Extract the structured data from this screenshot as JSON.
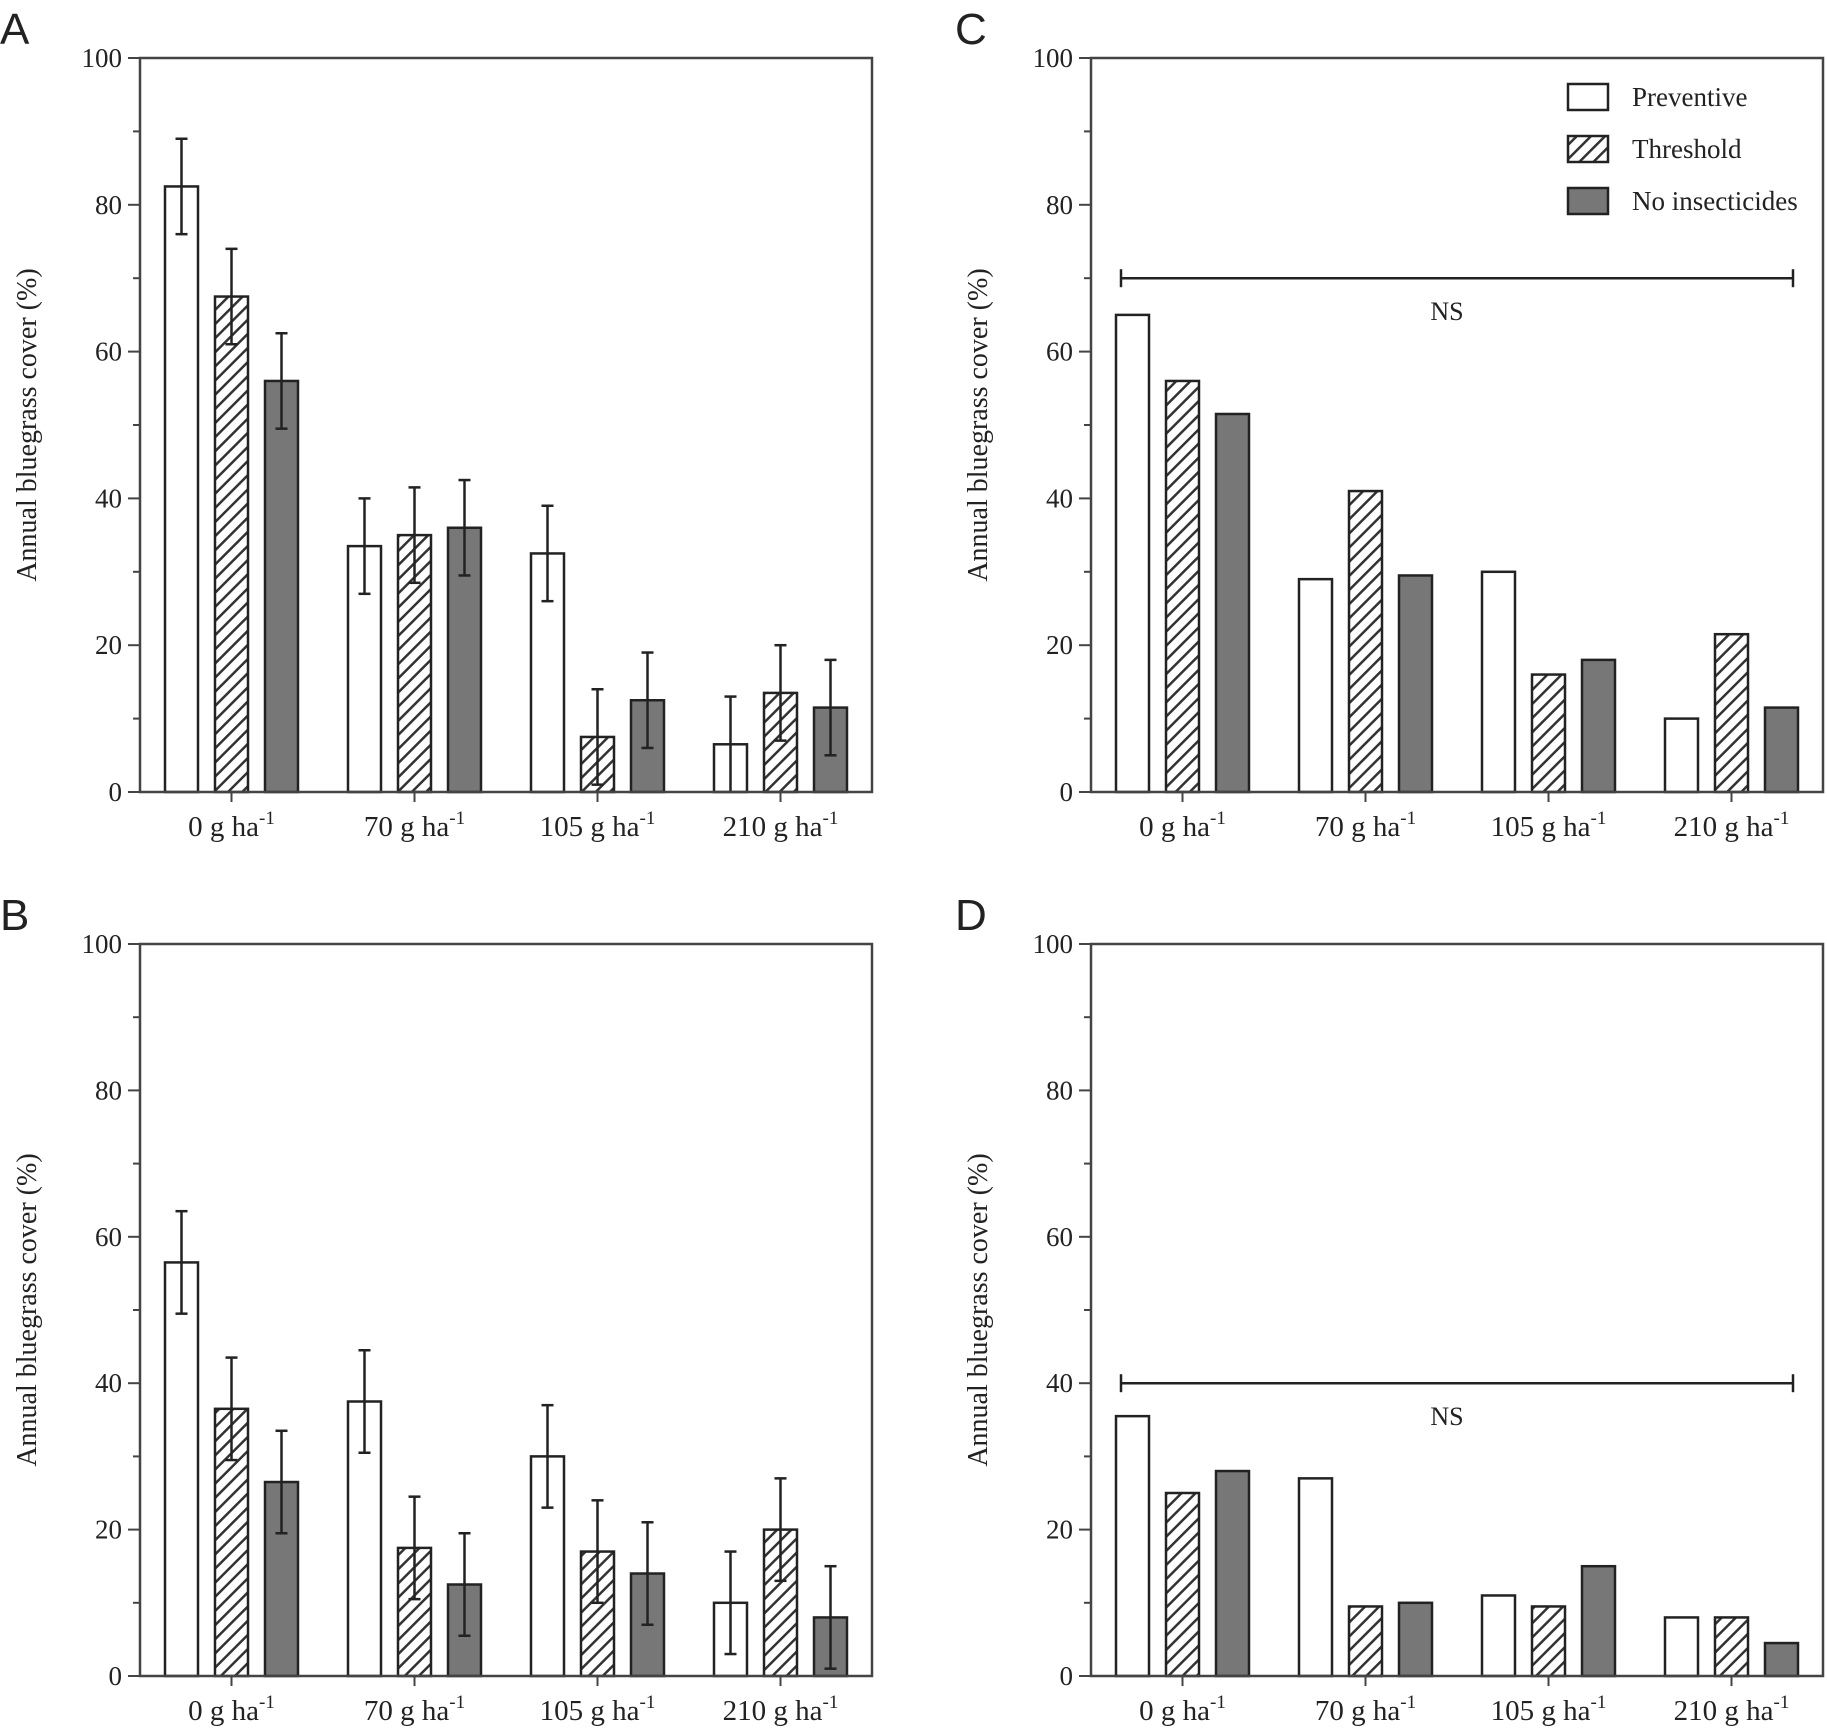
{
  "colors": {
    "axis": "#444444",
    "preventive": "#ffffff",
    "threshold_hatch": "#333333",
    "no_insecticides": "#777777",
    "bar_stroke": "#222222"
  },
  "chart_data": [
    {
      "panel": "A",
      "type": "bar",
      "ylabel": "Annual bluegrass cover (%)",
      "ylim": [
        0,
        100
      ],
      "yticks": [
        "0",
        "20",
        "40",
        "60",
        "80",
        "100"
      ],
      "categories": [
        {
          "main": "0 g ha",
          "sup": "-1"
        },
        {
          "main": "70 g ha",
          "sup": "-1"
        },
        {
          "main": "105 g ha",
          "sup": "-1"
        },
        {
          "main": "210 g ha",
          "sup": "-1"
        }
      ],
      "series": [
        {
          "key": "preventive",
          "values": [
            82.5,
            33.5,
            32.5,
            6.5
          ],
          "errors": [
            6.5,
            6.5,
            6.5,
            6.5
          ]
        },
        {
          "key": "threshold",
          "values": [
            67.5,
            35,
            7.5,
            13.5
          ],
          "errors": [
            6.5,
            6.5,
            6.5,
            6.5
          ]
        },
        {
          "key": "no_insecticides",
          "values": [
            56,
            36,
            12.5,
            11.5
          ],
          "errors": [
            6.5,
            6.5,
            6.5,
            6.5
          ]
        }
      ],
      "legend": false,
      "ns_line": null
    },
    {
      "panel": "B",
      "type": "bar",
      "ylabel": "Annual bluegrass cover (%)",
      "ylim": [
        0,
        100
      ],
      "yticks": [
        "0",
        "20",
        "40",
        "60",
        "80",
        "100"
      ],
      "categories": [
        {
          "main": "0 g ha",
          "sup": "-1"
        },
        {
          "main": "70 g ha",
          "sup": "-1"
        },
        {
          "main": "105 g ha",
          "sup": "-1"
        },
        {
          "main": "210 g ha",
          "sup": "-1"
        }
      ],
      "series": [
        {
          "key": "preventive",
          "values": [
            56.5,
            37.5,
            30,
            10
          ],
          "errors": [
            7,
            7,
            7,
            7
          ]
        },
        {
          "key": "threshold",
          "values": [
            36.5,
            17.5,
            17,
            20
          ],
          "errors": [
            7,
            7,
            7,
            7
          ]
        },
        {
          "key": "no_insecticides",
          "values": [
            26.5,
            12.5,
            14,
            8
          ],
          "errors": [
            7,
            7,
            7,
            7
          ]
        }
      ],
      "legend": false,
      "ns_line": null
    },
    {
      "panel": "C",
      "type": "bar",
      "ylabel": "Annual bluegrass cover (%)",
      "ylim": [
        0,
        100
      ],
      "yticks": [
        "0",
        "20",
        "40",
        "60",
        "80",
        "100"
      ],
      "categories": [
        {
          "main": "0 g ha",
          "sup": "-1"
        },
        {
          "main": "70 g ha",
          "sup": "-1"
        },
        {
          "main": "105 g ha",
          "sup": "-1"
        },
        {
          "main": "210 g ha",
          "sup": "-1"
        }
      ],
      "series": [
        {
          "key": "preventive",
          "values": [
            65,
            29,
            30,
            10
          ],
          "errors": null
        },
        {
          "key": "threshold",
          "values": [
            56,
            41,
            16,
            21.5
          ],
          "errors": null
        },
        {
          "key": "no_insecticides",
          "values": [
            51.5,
            29.5,
            18,
            11.5
          ],
          "errors": null
        }
      ],
      "legend": true,
      "legend_position": "top-right",
      "ns_line": {
        "y": 70,
        "label": "NS"
      }
    },
    {
      "panel": "D",
      "type": "bar",
      "ylabel": "Annual bluegrass cover (%)",
      "ylim": [
        0,
        100
      ],
      "yticks": [
        "0",
        "20",
        "40",
        "60",
        "80",
        "100"
      ],
      "categories": [
        {
          "main": "0 g ha",
          "sup": "-1"
        },
        {
          "main": "70 g ha",
          "sup": "-1"
        },
        {
          "main": "105 g ha",
          "sup": "-1"
        },
        {
          "main": "210 g ha",
          "sup": "-1"
        }
      ],
      "series": [
        {
          "key": "preventive",
          "values": [
            35.5,
            27,
            11,
            8
          ],
          "errors": null
        },
        {
          "key": "threshold",
          "values": [
            25,
            9.5,
            9.5,
            8
          ],
          "errors": null
        },
        {
          "key": "no_insecticides",
          "values": [
            28,
            10,
            15,
            4.5
          ],
          "errors": null
        }
      ],
      "legend": false,
      "ns_line": {
        "y": 40,
        "label": "NS"
      }
    }
  ],
  "legend": {
    "items": [
      {
        "key": "preventive",
        "label": "Preventive"
      },
      {
        "key": "threshold",
        "label": "Threshold"
      },
      {
        "key": "no_insecticides",
        "label": "No insecticides"
      }
    ]
  }
}
